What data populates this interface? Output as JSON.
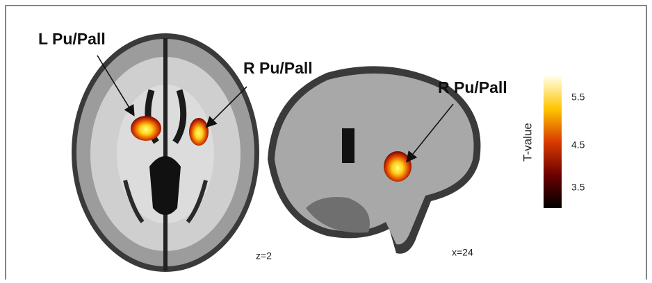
{
  "labels": {
    "left_axial": "L Pu/Pall",
    "right_axial": "R Pu/Pall",
    "right_sagittal": "R Pu/Pall"
  },
  "slices": {
    "axial": "z=2",
    "sagittal": "x=24"
  },
  "colorbar": {
    "title": "T-value",
    "ticks": [
      "5.5",
      "4.5",
      "3.5"
    ]
  }
}
